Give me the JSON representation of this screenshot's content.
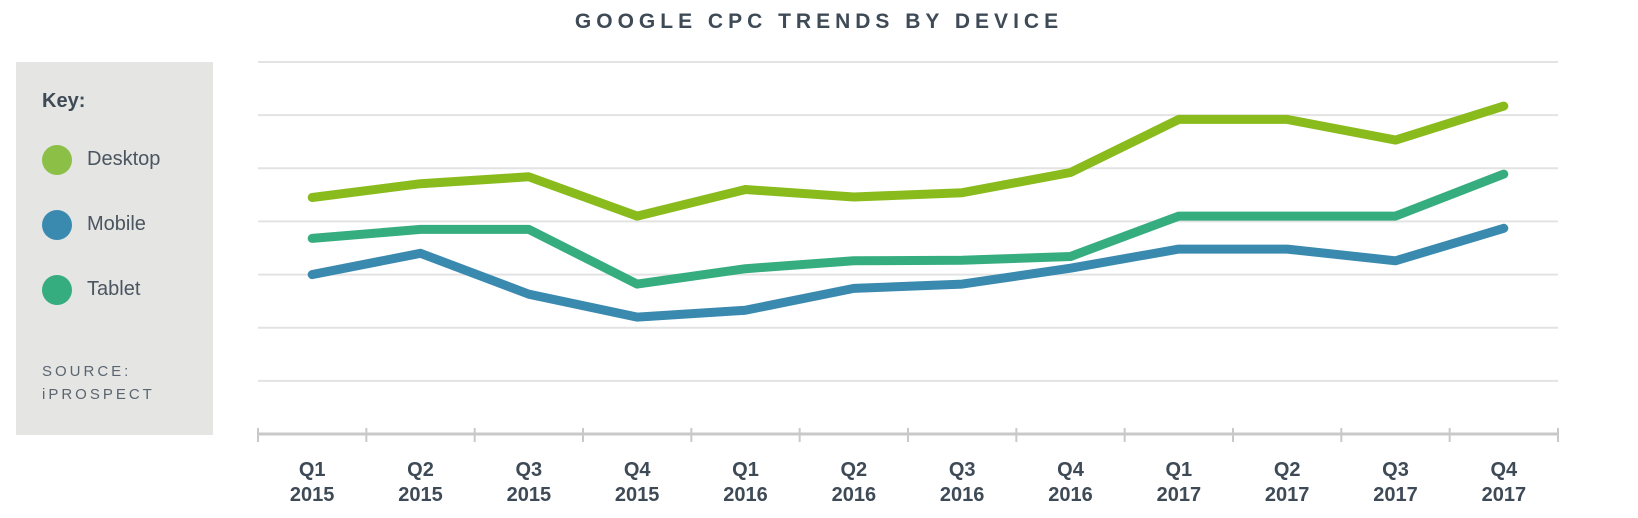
{
  "chart_data": {
    "type": "line",
    "title": "GOOGLE CPC TRENDS BY DEVICE",
    "categories": [
      "Q1 2015",
      "Q2 2015",
      "Q3 2015",
      "Q4 2015",
      "Q1 2016",
      "Q2 2016",
      "Q3 2016",
      "Q4 2016",
      "Q1 2017",
      "Q2 2017",
      "Q3 2017",
      "Q4 2017"
    ],
    "tick_labels": [
      [
        "Q1",
        "2015"
      ],
      [
        "Q2",
        "2015"
      ],
      [
        "Q3",
        "2015"
      ],
      [
        "Q4",
        "2015"
      ],
      [
        "Q1",
        "2016"
      ],
      [
        "Q2",
        "2016"
      ],
      [
        "Q3",
        "2016"
      ],
      [
        "Q4",
        "2016"
      ],
      [
        "Q1",
        "2017"
      ],
      [
        "Q2",
        "2017"
      ],
      [
        "Q3",
        "2017"
      ],
      [
        "Q4",
        "2017"
      ]
    ],
    "ylim": [
      0,
      7
    ],
    "y_gridlines": 7,
    "grid": true,
    "legend_placement": "left",
    "series": [
      {
        "name": "Desktop",
        "color": "#8abb1c",
        "values": [
          4.45,
          4.71,
          4.84,
          4.1,
          4.6,
          4.46,
          4.54,
          4.92,
          5.92,
          5.92,
          5.53,
          6.17
        ]
      },
      {
        "name": "Mobile",
        "color": "#3a8ab0",
        "values": [
          3.0,
          3.4,
          2.63,
          2.2,
          2.33,
          2.74,
          2.82,
          3.12,
          3.48,
          3.48,
          3.26,
          3.87
        ]
      },
      {
        "name": "Tablet",
        "color": "#35ad7f",
        "values": [
          3.68,
          3.85,
          3.85,
          2.82,
          3.11,
          3.26,
          3.27,
          3.34,
          4.1,
          4.1,
          4.1,
          4.89
        ]
      }
    ]
  },
  "legend": {
    "title": "Key:",
    "items": [
      {
        "label": "Desktop",
        "color": "#8cbf45"
      },
      {
        "label": "Mobile",
        "color": "#3a8ab0"
      },
      {
        "label": "Tablet",
        "color": "#35ad7f"
      }
    ]
  },
  "source": {
    "line1": "SOURCE:",
    "line2": "iPROSPECT"
  }
}
